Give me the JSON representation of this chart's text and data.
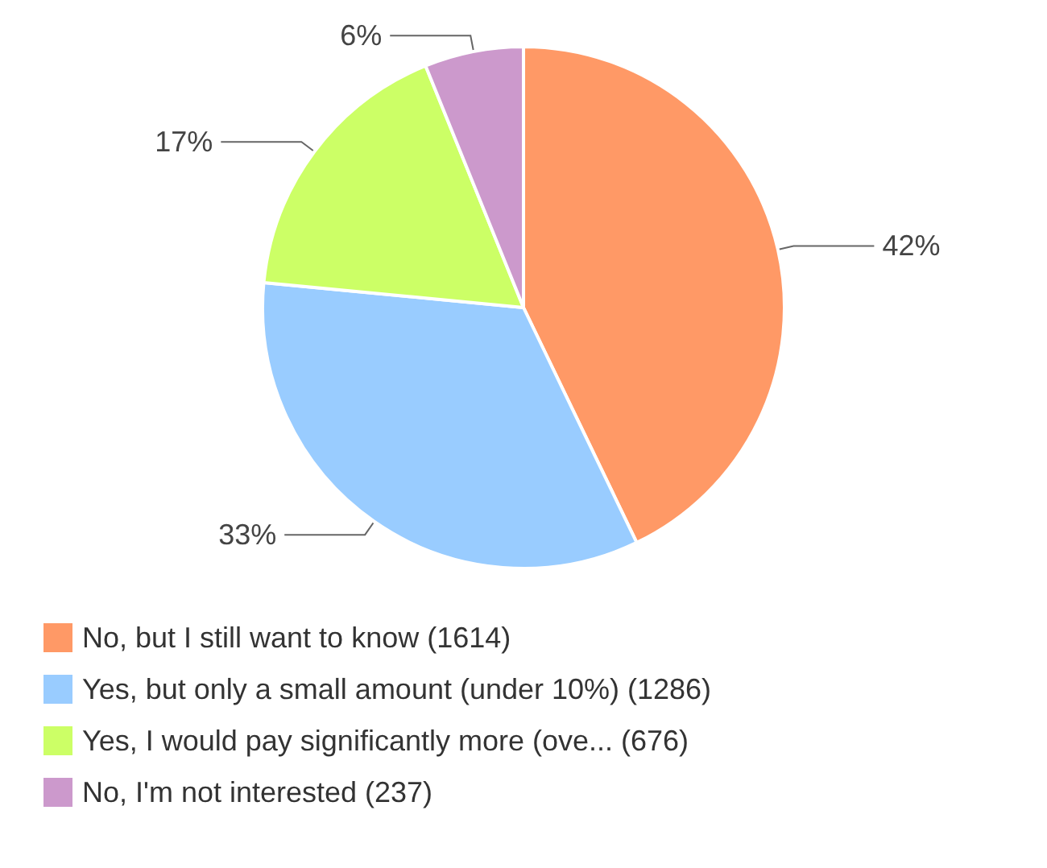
{
  "chart_data": {
    "type": "pie",
    "categories": [
      "No, but I still want to know (1614)",
      "Yes, but only a small amount (under 10%) (1286)",
      "Yes, I would pay significantly more (ove... (676)",
      "No, I'm not interested (237)"
    ],
    "values": [
      42,
      33,
      17,
      6
    ],
    "colors": [
      "#ff9966",
      "#99ccff",
      "#ccff66",
      "#cc99cc"
    ],
    "value_labels": [
      "42%",
      "33%",
      "17%",
      "6%"
    ],
    "legend": "bottom left"
  }
}
